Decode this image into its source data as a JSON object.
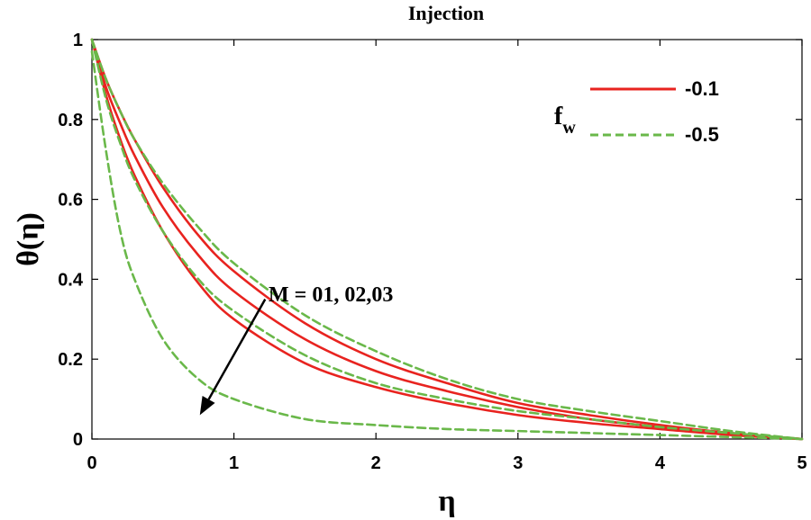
{
  "chart_data": {
    "type": "line",
    "title": "Injection",
    "xlabel": "η",
    "ylabel": "θ(η)",
    "xlim": [
      0,
      5
    ],
    "ylim": [
      0,
      1
    ],
    "xticks": [
      0,
      1,
      2,
      3,
      4,
      5
    ],
    "yticks": [
      0,
      0.2,
      0.4,
      0.6,
      0.8,
      1
    ],
    "xtick_labels": [
      "0",
      "1",
      "2",
      "3",
      "4",
      "5"
    ],
    "ytick_labels": [
      "0",
      "0.2",
      "0.4",
      "0.6",
      "0.8",
      "1"
    ],
    "grid": false,
    "legend": {
      "position": "top-right",
      "title": "f",
      "title_subscript": "w",
      "entries": [
        {
          "label": "-0.1",
          "color": "#e8231f",
          "style": "solid"
        },
        {
          "label": "-0.5",
          "color": "#6ab84a",
          "style": "dashed"
        }
      ]
    },
    "annotation": {
      "text": "M = 01, 02,03",
      "arrow_from": [
        1.22,
        0.35
      ],
      "arrow_to": [
        0.76,
        0.06
      ]
    },
    "x": [
      0,
      0.1,
      0.2,
      0.3,
      0.5,
      0.75,
      1,
      1.5,
      2,
      2.5,
      3,
      3.5,
      4,
      4.5,
      5
    ],
    "series": [
      {
        "name": "fw=-0.1, M=01",
        "group": "-0.1",
        "color": "#e8231f",
        "style": "solid",
        "values": [
          1,
          0.9,
          0.82,
          0.75,
          0.63,
          0.51,
          0.42,
          0.29,
          0.2,
          0.14,
          0.09,
          0.06,
          0.035,
          0.015,
          0
        ]
      },
      {
        "name": "fw=-0.1, M=02",
        "group": "-0.1",
        "color": "#e8231f",
        "style": "solid",
        "values": [
          1,
          0.88,
          0.79,
          0.71,
          0.58,
          0.46,
          0.37,
          0.25,
          0.17,
          0.12,
          0.08,
          0.05,
          0.03,
          0.013,
          0
        ]
      },
      {
        "name": "fw=-0.1, M=03",
        "group": "-0.1",
        "color": "#e8231f",
        "style": "solid",
        "values": [
          1,
          0.86,
          0.75,
          0.66,
          0.52,
          0.39,
          0.3,
          0.19,
          0.13,
          0.09,
          0.06,
          0.04,
          0.025,
          0.01,
          0
        ]
      },
      {
        "name": "fw=-0.5, M=01",
        "group": "-0.5",
        "color": "#6ab84a",
        "style": "dashed",
        "values": [
          1,
          0.9,
          0.82,
          0.75,
          0.64,
          0.53,
          0.44,
          0.31,
          0.22,
          0.15,
          0.1,
          0.07,
          0.045,
          0.02,
          0
        ]
      },
      {
        "name": "fw=-0.5, M=02",
        "group": "-0.5",
        "color": "#6ab84a",
        "style": "dashed",
        "values": [
          1,
          0.85,
          0.74,
          0.65,
          0.52,
          0.4,
          0.32,
          0.21,
          0.14,
          0.1,
          0.07,
          0.05,
          0.03,
          0.015,
          0
        ]
      },
      {
        "name": "fw=-0.5, M=03",
        "group": "-0.5",
        "color": "#6ab84a",
        "style": "dashed",
        "values": [
          0.97,
          0.72,
          0.52,
          0.4,
          0.25,
          0.15,
          0.1,
          0.05,
          0.035,
          0.025,
          0.02,
          0.015,
          0.01,
          0.005,
          0
        ]
      }
    ]
  }
}
